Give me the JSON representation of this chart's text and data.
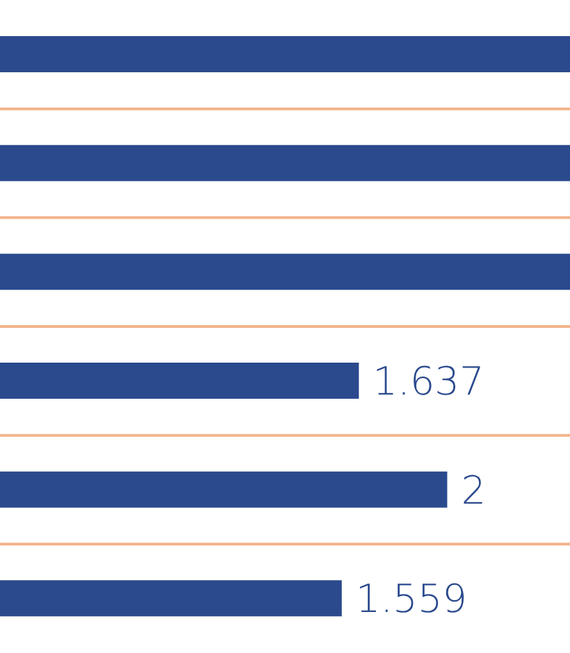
{
  "chart_data": {
    "type": "bar",
    "orientation": "horizontal",
    "categories": [
      null,
      null,
      null,
      null,
      null,
      null
    ],
    "values": [
      2.6,
      2.6,
      2.6,
      1.637,
      2.04,
      1.559
    ],
    "value_labels": [
      null,
      null,
      null,
      "1.637",
      "2",
      "1.559"
    ],
    "color": "#2b4a8e",
    "xlim": [
      0,
      2.6
    ],
    "grid": "y"
  }
}
